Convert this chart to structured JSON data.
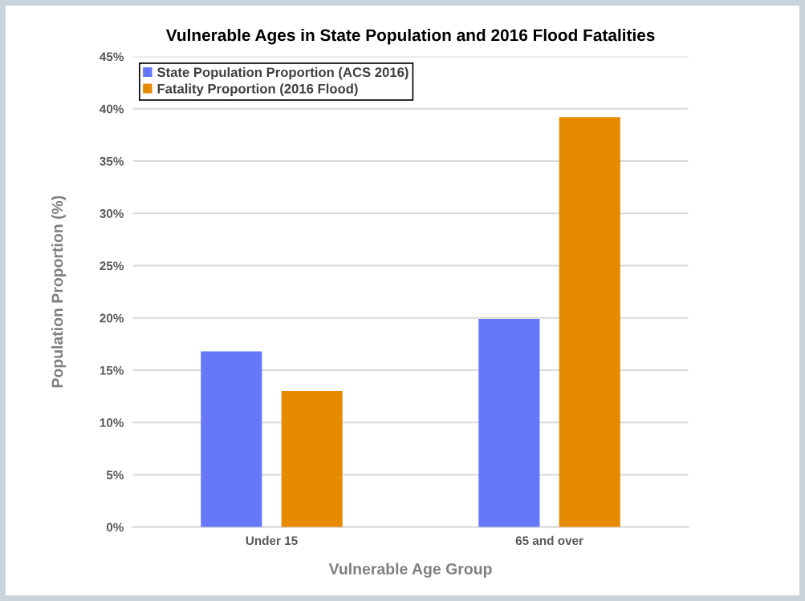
{
  "chart_data": {
    "type": "bar",
    "title": "Vulnerable Ages in State Population and 2016 Flood Fatalities",
    "xlabel": "Vulnerable Age Group",
    "ylabel": "Population Proportion (%)",
    "categories": [
      "Under 15",
      "65 and over"
    ],
    "series": [
      {
        "name": "State Population Proportion (ACS 2016)",
        "color": "#6677f8",
        "values": [
          16.8,
          19.9
        ]
      },
      {
        "name": "Fatality Proportion (2016 Flood)",
        "color": "#e68a00",
        "values": [
          13.0,
          39.2
        ]
      }
    ],
    "ylim": [
      0,
      45
    ],
    "yticks": [
      {
        "value": 0,
        "label": "0%"
      },
      {
        "value": 5,
        "label": "5%"
      },
      {
        "value": 10,
        "label": "10%"
      },
      {
        "value": 15,
        "label": "15%"
      },
      {
        "value": 20,
        "label": "20%"
      },
      {
        "value": 25,
        "label": "25%"
      },
      {
        "value": 30,
        "label": "30%"
      },
      {
        "value": 35,
        "label": "35%"
      },
      {
        "value": 40,
        "label": "40%"
      },
      {
        "value": 45,
        "label": "45%"
      }
    ],
    "grid": "y",
    "legend": "top left"
  }
}
